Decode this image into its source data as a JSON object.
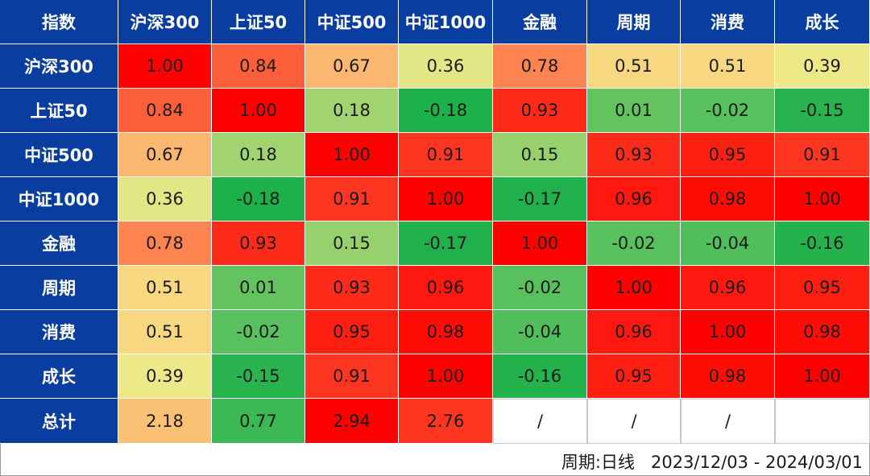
{
  "chart_data": {
    "type": "heatmap",
    "corner_label": "指数",
    "columns": [
      "沪深300",
      "上证50",
      "中证500",
      "中证1000",
      "金融",
      "周期",
      "消费",
      "成长"
    ],
    "rows": [
      {
        "label": "沪深300",
        "values": [
          "1.00",
          "0.84",
          "0.67",
          "0.36",
          "0.78",
          "0.51",
          "0.51",
          "0.39"
        ]
      },
      {
        "label": "上证50",
        "values": [
          "0.84",
          "1.00",
          "0.18",
          "-0.18",
          "0.93",
          "0.01",
          "-0.02",
          "-0.15"
        ]
      },
      {
        "label": "中证500",
        "values": [
          "0.67",
          "0.18",
          "1.00",
          "0.91",
          "0.15",
          "0.93",
          "0.95",
          "0.91"
        ]
      },
      {
        "label": "中证1000",
        "values": [
          "0.36",
          "-0.18",
          "0.91",
          "1.00",
          "-0.17",
          "0.96",
          "0.98",
          "1.00"
        ]
      },
      {
        "label": "金融",
        "values": [
          "0.78",
          "0.93",
          "0.15",
          "-0.17",
          "1.00",
          "-0.02",
          "-0.04",
          "-0.16"
        ]
      },
      {
        "label": "周期",
        "values": [
          "0.51",
          "0.01",
          "0.93",
          "0.96",
          "-0.02",
          "1.00",
          "0.96",
          "0.95"
        ]
      },
      {
        "label": "消费",
        "values": [
          "0.51",
          "-0.02",
          "0.95",
          "0.98",
          "-0.04",
          "0.96",
          "1.00",
          "0.98"
        ]
      },
      {
        "label": "成长",
        "values": [
          "0.39",
          "-0.15",
          "0.91",
          "1.00",
          "-0.16",
          "0.95",
          "0.98",
          "1.00"
        ]
      }
    ],
    "total_row": {
      "label": "总计",
      "values": [
        "2.18",
        "0.77",
        "2.94",
        "2.76",
        "/",
        "/",
        "/",
        ""
      ]
    },
    "footer_note": "周期:日线   2023/12/03 - 2024/03/01",
    "colors": {
      "header_bg": "#0a3da0",
      "header_text": "#ffffff",
      "scale_low": "#1db04b",
      "scale_mid": "#f5eb8a",
      "scale_high": "#ff0000"
    }
  }
}
